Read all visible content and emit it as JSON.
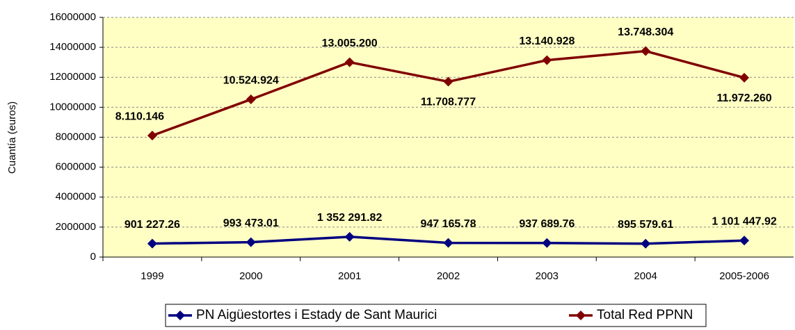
{
  "chart_data": {
    "type": "line",
    "y_label": "Cuantía (euros)",
    "categories": [
      "1999",
      "2000",
      "2001",
      "2002",
      "2003",
      "2004",
      "2005-2006"
    ],
    "series": [
      {
        "name": "PN Aigüestortes i Estady de Sant Maurici",
        "color": "#000080",
        "values": [
          901227.26,
          993473.01,
          1352291.82,
          947165.78,
          937689.76,
          895579.61,
          1101447.92
        ],
        "value_labels": [
          "901 227.26",
          "993 473.01",
          "1 352 291.82",
          "947 165.78",
          "937 689.76",
          "895 579.61",
          "1 101 447.92"
        ]
      },
      {
        "name": "Total Red PPNN",
        "color": "#800000",
        "values": [
          8110146,
          10524924,
          13005200,
          11708777,
          13140928,
          13748304,
          11972260
        ],
        "value_labels": [
          "8.110.146",
          "10.524.924",
          "13.005.200",
          "11.708.777",
          "13.140.928",
          "13.748.304",
          "11.972.260"
        ]
      }
    ],
    "ylim": [
      0,
      16000000
    ],
    "yticks": [
      0,
      2000000,
      4000000,
      6000000,
      8000000,
      10000000,
      12000000,
      14000000,
      16000000
    ],
    "grid": true,
    "legend": "bottom",
    "plot_background": "#ffffc4"
  }
}
